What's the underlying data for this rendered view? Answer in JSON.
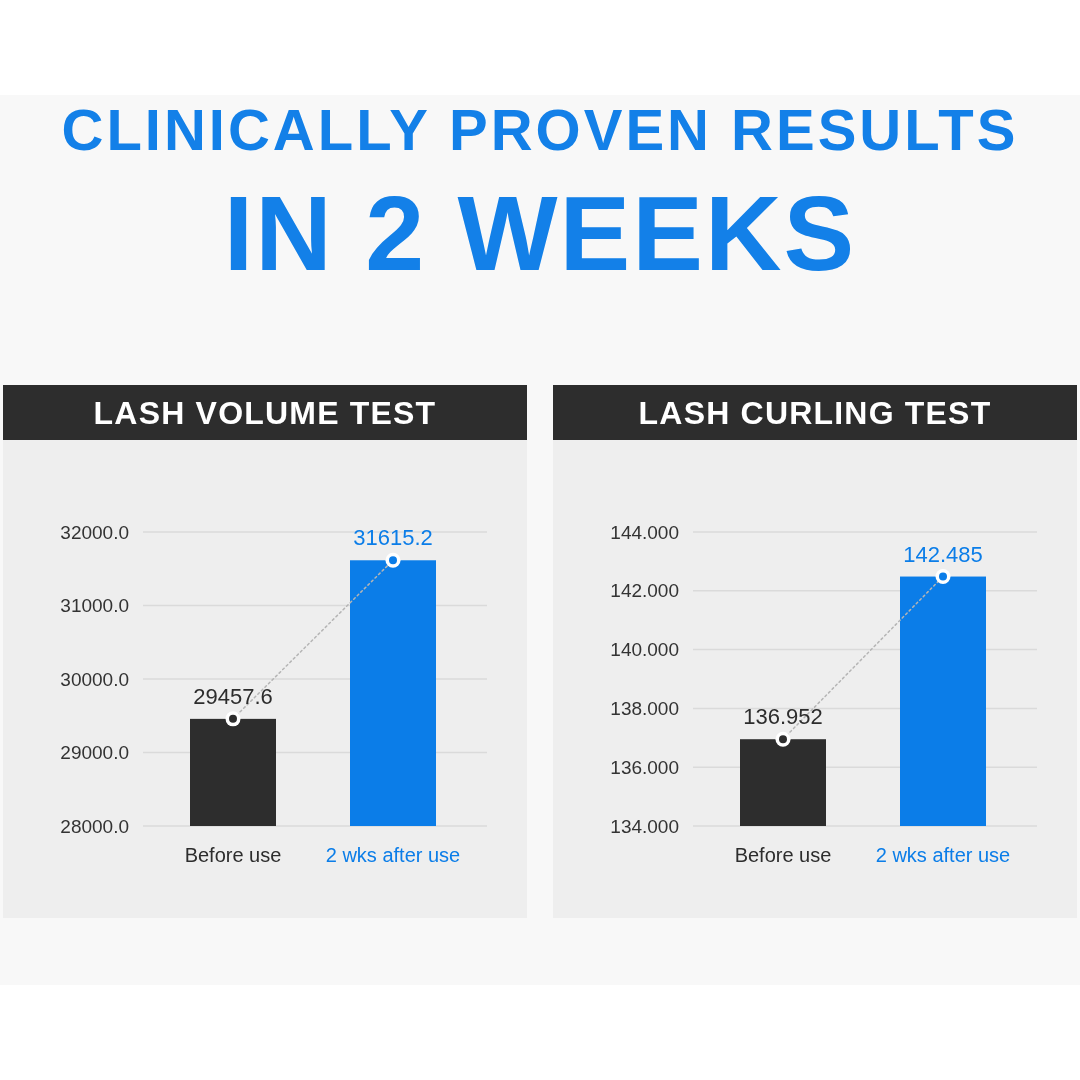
{
  "chart_data": [
    {
      "type": "other",
      "title": "CLINICALLY PROVEN RESULTS",
      "subtitle": "IN 2 WEEKS"
    },
    {
      "type": "bar",
      "title": "LASH VOLUME TEST",
      "categories": [
        "Before use",
        "2 wks after use"
      ],
      "series": [
        {
          "type": "bar",
          "colors": [
            "#2d2d2d",
            "#0b7de8"
          ],
          "values": [
            29457.6,
            31615.2
          ],
          "value_labels": [
            "29457.6",
            "31615.2"
          ]
        },
        {
          "type": "line",
          "color": "#b5b5b5",
          "colors": [
            "#2d2d2d",
            "#0b7de8"
          ],
          "values": [
            29457.6,
            31615.2
          ]
        }
      ],
      "ylim": [
        28000,
        32000
      ],
      "yticks": [
        {
          "value": 28000,
          "label": "28000.0"
        },
        {
          "value": 29000,
          "label": "29000.0"
        },
        {
          "value": 30000,
          "label": "30000.0"
        },
        {
          "value": 31000,
          "label": "31000.0"
        },
        {
          "value": 32000,
          "label": "32000.0"
        }
      ],
      "grid": "y",
      "marker": "circle",
      "line_style": "dotted"
    },
    {
      "type": "bar",
      "title": "LASH CURLING TEST",
      "categories": [
        "Before use",
        "2 wks after use"
      ],
      "series": [
        {
          "type": "bar",
          "colors": [
            "#2d2d2d",
            "#0b7de8"
          ],
          "values": [
            136.952,
            142.485
          ],
          "value_labels": [
            "136.952",
            "142.485"
          ]
        },
        {
          "type": "line",
          "color": "#b5b5b5",
          "colors": [
            "#2d2d2d",
            "#0b7de8"
          ],
          "values": [
            136.952,
            142.485
          ]
        }
      ],
      "ylim": [
        134,
        144
      ],
      "yticks": [
        {
          "value": 134,
          "label": "134.000"
        },
        {
          "value": 136,
          "label": "136.000"
        },
        {
          "value": 138,
          "label": "138.000"
        },
        {
          "value": 140,
          "label": "140.000"
        },
        {
          "value": 142,
          "label": "142.000"
        },
        {
          "value": 144,
          "label": "144.000"
        }
      ],
      "grid": "y",
      "marker": "circle",
      "line_style": "dotted"
    }
  ]
}
